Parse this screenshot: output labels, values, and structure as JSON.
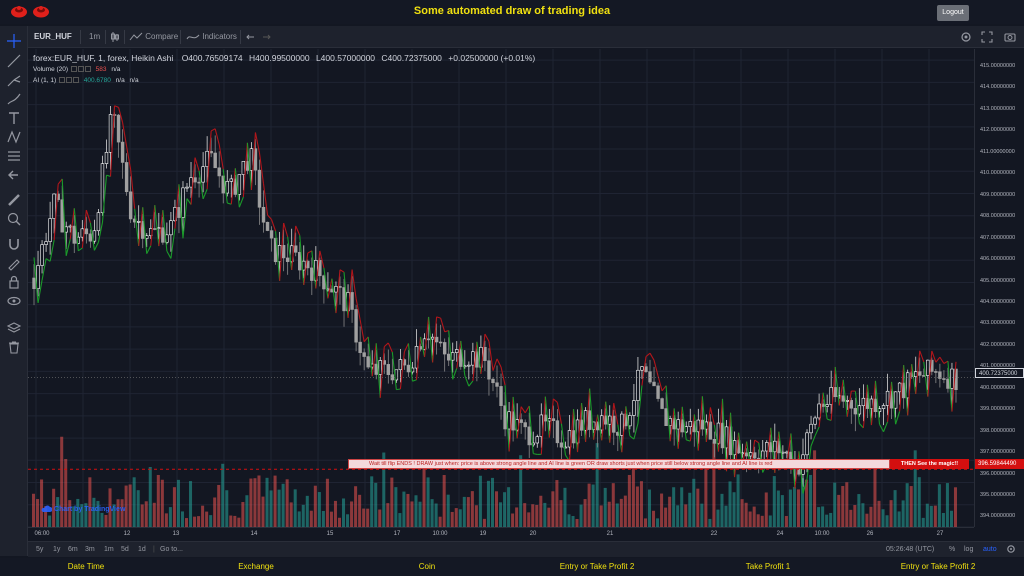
{
  "header": {
    "title": "Some automated draw of trading idea",
    "logout_label": "Logout",
    "logo_color": "#e0201b"
  },
  "toolbar": {
    "symbol": "EUR_HUF",
    "interval": "1m",
    "compare_label": "Compare",
    "indicators_label": "Indicators"
  },
  "legend": {
    "title": "forex:EUR_HUF, 1, forex, Heikin Ashi",
    "open": "O400.76509174",
    "high": "H400.99500000",
    "low": "L400.57000000",
    "close": "C400.72375000",
    "change": "+0.02500000 (+0.01%)",
    "volume_label": "Volume (20)",
    "volume_value": "583",
    "volume_na": "n/a",
    "ai_label": "AI (1, 1)",
    "ai_value": "400.6780",
    "ai_na1": "n/a",
    "ai_na2": "n/a"
  },
  "watermark": "Chart by TradingView",
  "banner": {
    "text": "Wait till flip ENDS  !   DRAW just when:  price is above strong angle line and AI line is green          OR        draw shorts just when price still below strong angle line and AI line is red",
    "magic": "THEN See the magic!!"
  },
  "price_axis": {
    "labels": [
      "415.00000000",
      "414.00000000",
      "413.00000000",
      "412.00000000",
      "411.00000000",
      "410.00000000",
      "409.00000000",
      "408.00000000",
      "407.00000000",
      "406.00000000",
      "405.00000000",
      "404.00000000",
      "403.00000000",
      "402.00000000",
      "401.00000000",
      "400.00000000",
      "399.00000000",
      "398.00000000",
      "397.00000000",
      "396.00000000",
      "395.00000000",
      "394.00000000"
    ],
    "current_price": "400.72375000",
    "alert_price": "396.59844490"
  },
  "time_axis": {
    "labels": [
      "06:00",
      "12",
      "13",
      "14",
      "15",
      "17",
      "10:00",
      "19",
      "20",
      "21",
      "22",
      "24",
      "10:00",
      "26",
      "27"
    ]
  },
  "bottom_bar": {
    "ranges": [
      "5y",
      "1y",
      "6m",
      "3m",
      "1m",
      "5d",
      "1d"
    ],
    "goto_label": "Go to...",
    "clock": "05:26:48 (UTC)",
    "percent_label": "%",
    "log_label": "log",
    "auto_label": "auto"
  },
  "footer": {
    "columns": [
      "Date Time",
      "Exchange",
      "Coin",
      "Entry or Take Profit 2",
      "Take Profit 1",
      "Entry or Take Profit 2"
    ]
  },
  "colors": {
    "up": "#26a69a",
    "down": "#ef5350",
    "candle_up": "#ffffff",
    "candle_down": "#a0a0a0",
    "ai_green": "#1b9a2a",
    "ai_red": "#b2161b",
    "accent_yellow": "#f0e010"
  },
  "chart_data": {
    "type": "candlestick",
    "symbol": "forex:EUR_HUF",
    "ylim": [
      394,
      415.5
    ],
    "approx_close_path": [
      405.2,
      408.5,
      407.0,
      407.2,
      412.5,
      408.0,
      407.2,
      407.5,
      409.8,
      410.5,
      409.0,
      410.8,
      406.5,
      406.2,
      405.8,
      405.0,
      404.0,
      401.0,
      401.0,
      401.2,
      403.0,
      401.5,
      401.8,
      401.5,
      399.0,
      398.2,
      398.5,
      398.0,
      398.7,
      399.0,
      398.5,
      401.0,
      399.0,
      398.5,
      398.6,
      398.2,
      397.5,
      397.4,
      397.5,
      396.8,
      399.5,
      399.8,
      399.5,
      399.7,
      400.0,
      400.8,
      401.0,
      400.7
    ],
    "x_labels": [
      "06:00",
      "12",
      "13",
      "14",
      "15",
      "17",
      "10:00",
      "19",
      "20",
      "21",
      "22",
      "24",
      "10:00",
      "26",
      "27"
    ]
  }
}
